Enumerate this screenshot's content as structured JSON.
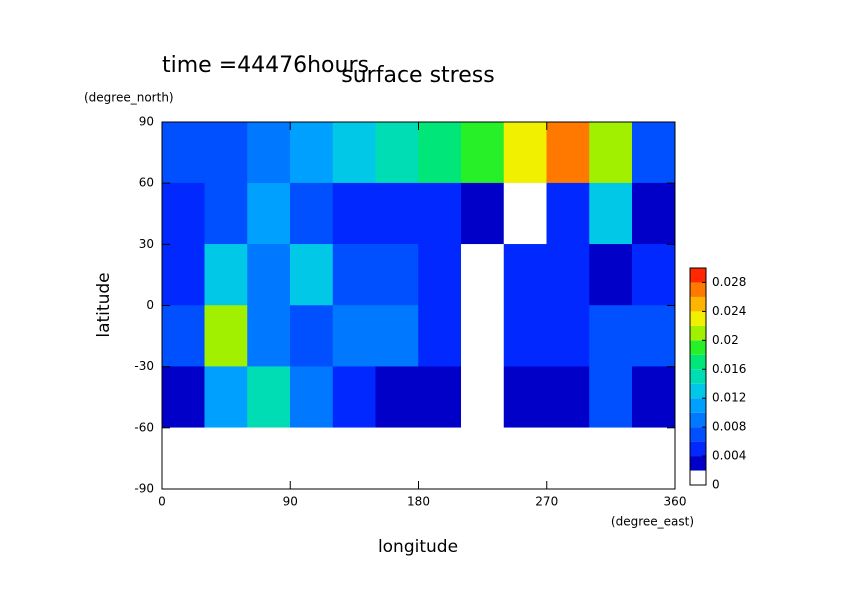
{
  "chart_data": {
    "type": "contour",
    "title": "time =44476hours",
    "subtitle": "surface stress",
    "x_label": "longitude",
    "x_units": "(degree_east)",
    "y_label": "latitude",
    "y_units": "(degree_north)",
    "xlim": [
      0,
      360
    ],
    "xticks": [
      0,
      90,
      180,
      270,
      360
    ],
    "ylim": [
      -90,
      90
    ],
    "yticks": [
      -90,
      -60,
      -30,
      0,
      30,
      60,
      90
    ],
    "x": [
      15,
      45,
      75,
      105,
      135,
      165,
      195,
      225,
      255,
      285,
      315,
      345
    ],
    "y": [
      75,
      45,
      15,
      -15,
      -45,
      -75
    ],
    "z": [
      [
        0.006,
        0.006,
        0.008,
        0.01,
        0.012,
        0.014,
        0.016,
        0.018,
        0.022,
        0.026,
        0.02,
        0.006
      ],
      [
        0.004,
        0.006,
        0.01,
        0.006,
        0.004,
        0.004,
        0.004,
        0.002,
        0,
        0.004,
        0.012,
        0.002
      ],
      [
        0.004,
        0.012,
        0.008,
        0.012,
        0.006,
        0.006,
        0.004,
        0,
        0.004,
        0.004,
        0.002,
        0.004
      ],
      [
        0.006,
        0.02,
        0.008,
        0.006,
        0.008,
        0.008,
        0.004,
        0,
        0.004,
        0.004,
        0.006,
        0.006
      ],
      [
        0.002,
        0.01,
        0.014,
        0.008,
        0.004,
        0.002,
        0.002,
        0,
        0.002,
        0.002,
        0.006,
        0.002
      ],
      [
        0,
        0,
        0,
        0,
        0,
        0,
        0,
        0,
        0,
        0,
        0,
        0
      ]
    ],
    "zlim": [
      0,
      0.03
    ],
    "zticks": [
      0,
      0.004,
      0.008,
      0.012,
      0.016,
      0.02,
      0.024,
      0.028
    ],
    "colors": [
      "#ffffff",
      "#0000c8",
      "#0028ff",
      "#0050ff",
      "#0078ff",
      "#00a0ff",
      "#00c8e6",
      "#00dcb4",
      "#00e678",
      "#28f028",
      "#a0f000",
      "#f0f000",
      "#ffb400",
      "#ff7800",
      "#ff2800"
    ]
  }
}
